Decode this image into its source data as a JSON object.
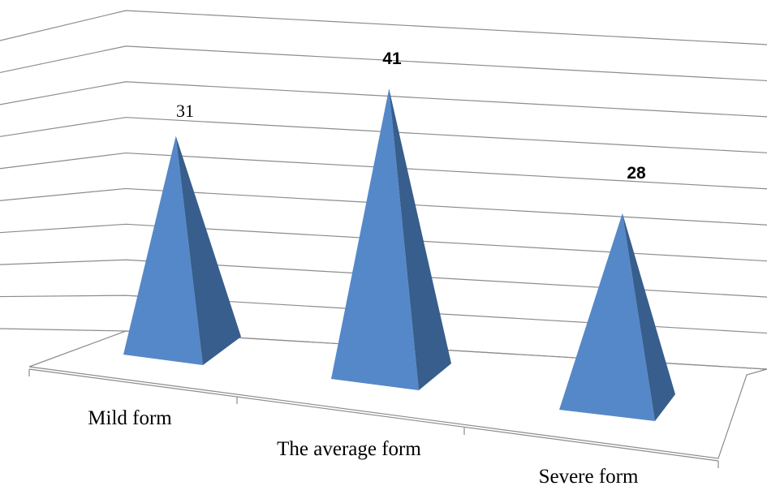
{
  "chart_data": {
    "type": "bar",
    "style": "3d-pyramid",
    "categories": [
      "Mild form",
      "The average form",
      "Severe form"
    ],
    "values": [
      31,
      41,
      28
    ],
    "data_labels": [
      "31",
      "41",
      "28"
    ],
    "title": "",
    "xlabel": "",
    "ylabel": "",
    "ylim": [
      0,
      45
    ],
    "grid": true,
    "legend": "none",
    "colors": {
      "front_face": "#5588c8",
      "side_face": "#375e8c",
      "gridline": "#8c8c8c"
    }
  }
}
